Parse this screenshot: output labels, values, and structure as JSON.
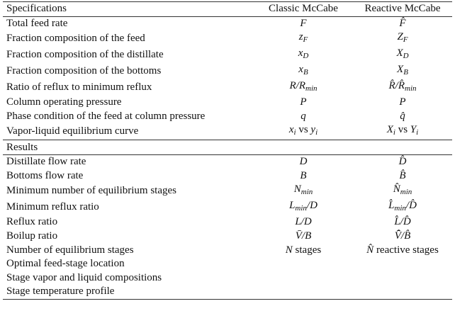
{
  "table": {
    "header": [
      "Specifications",
      "Classic McCabe",
      "Reactive McCabe"
    ],
    "spec_rows": [
      [
        "Total feed rate",
        [
          {
            "m": "F"
          }
        ],
        [
          {
            "m": "F̂"
          }
        ]
      ],
      [
        "Fraction composition of the feed",
        [
          {
            "m": "z"
          },
          {
            "s": "F"
          }
        ],
        [
          {
            "m": "Z"
          },
          {
            "s": "F"
          }
        ]
      ],
      [
        "Fraction composition of the distillate",
        [
          {
            "m": "x"
          },
          {
            "s": "D"
          }
        ],
        [
          {
            "m": "X"
          },
          {
            "s": "D"
          }
        ]
      ],
      [
        "Fraction composition of the bottoms",
        [
          {
            "m": "x"
          },
          {
            "s": "B"
          }
        ],
        [
          {
            "m": "X"
          },
          {
            "s": "B"
          }
        ]
      ],
      [
        "Ratio of reflux to minimum reflux",
        [
          {
            "m": "R/R"
          },
          {
            "s": "min"
          }
        ],
        [
          {
            "m": "R̂/R̂"
          },
          {
            "s": "min"
          }
        ]
      ],
      [
        "Column operating pressure",
        [
          {
            "m": "P"
          }
        ],
        [
          {
            "m": "P"
          }
        ]
      ],
      [
        "Phase condition of the feed at column pressure",
        [
          {
            "m": "q"
          }
        ],
        [
          {
            "m": "q̂"
          }
        ]
      ],
      [
        "Vapor-liquid equilibrium curve",
        [
          {
            "m": "x"
          },
          {
            "s": "i"
          },
          {
            "t": " vs "
          },
          {
            "m": "y"
          },
          {
            "s": "i"
          }
        ],
        [
          {
            "m": "X"
          },
          {
            "s": "i"
          },
          {
            "t": " vs "
          },
          {
            "m": "Y"
          },
          {
            "s": "i"
          }
        ]
      ]
    ],
    "results_label": "Results",
    "result_rows": [
      [
        "Distillate flow rate",
        [
          {
            "m": "D"
          }
        ],
        [
          {
            "m": "D̂"
          }
        ]
      ],
      [
        "Bottoms flow rate",
        [
          {
            "m": "B"
          }
        ],
        [
          {
            "m": "B̂"
          }
        ]
      ],
      [
        "Minimum number of equilibrium stages",
        [
          {
            "m": "N"
          },
          {
            "s": "min"
          }
        ],
        [
          {
            "m": "N̂"
          },
          {
            "s": "min"
          }
        ]
      ],
      [
        "Minimum reflux ratio",
        [
          {
            "m": "L"
          },
          {
            "s": "min"
          },
          {
            "m": "/D"
          }
        ],
        [
          {
            "m": "L̂"
          },
          {
            "s": "min"
          },
          {
            "m": "/D̂"
          }
        ]
      ],
      [
        "Reflux ratio",
        [
          {
            "m": "L/D"
          }
        ],
        [
          {
            "m": "L̂/D̂"
          }
        ]
      ],
      [
        "Boilup ratio",
        [
          {
            "m": "V̄/B"
          }
        ],
        [
          {
            "m": "V̄̂/B̂"
          }
        ]
      ],
      [
        "Number of equilibrium stages",
        [
          {
            "m": "N"
          },
          {
            "t": " stages"
          }
        ],
        [
          {
            "m": "N̂"
          },
          {
            "t": " reactive stages"
          }
        ]
      ],
      [
        "Optimal feed-stage location"
      ],
      [
        "Stage vapor and liquid compositions"
      ],
      [
        "Stage temperature profile"
      ]
    ]
  }
}
